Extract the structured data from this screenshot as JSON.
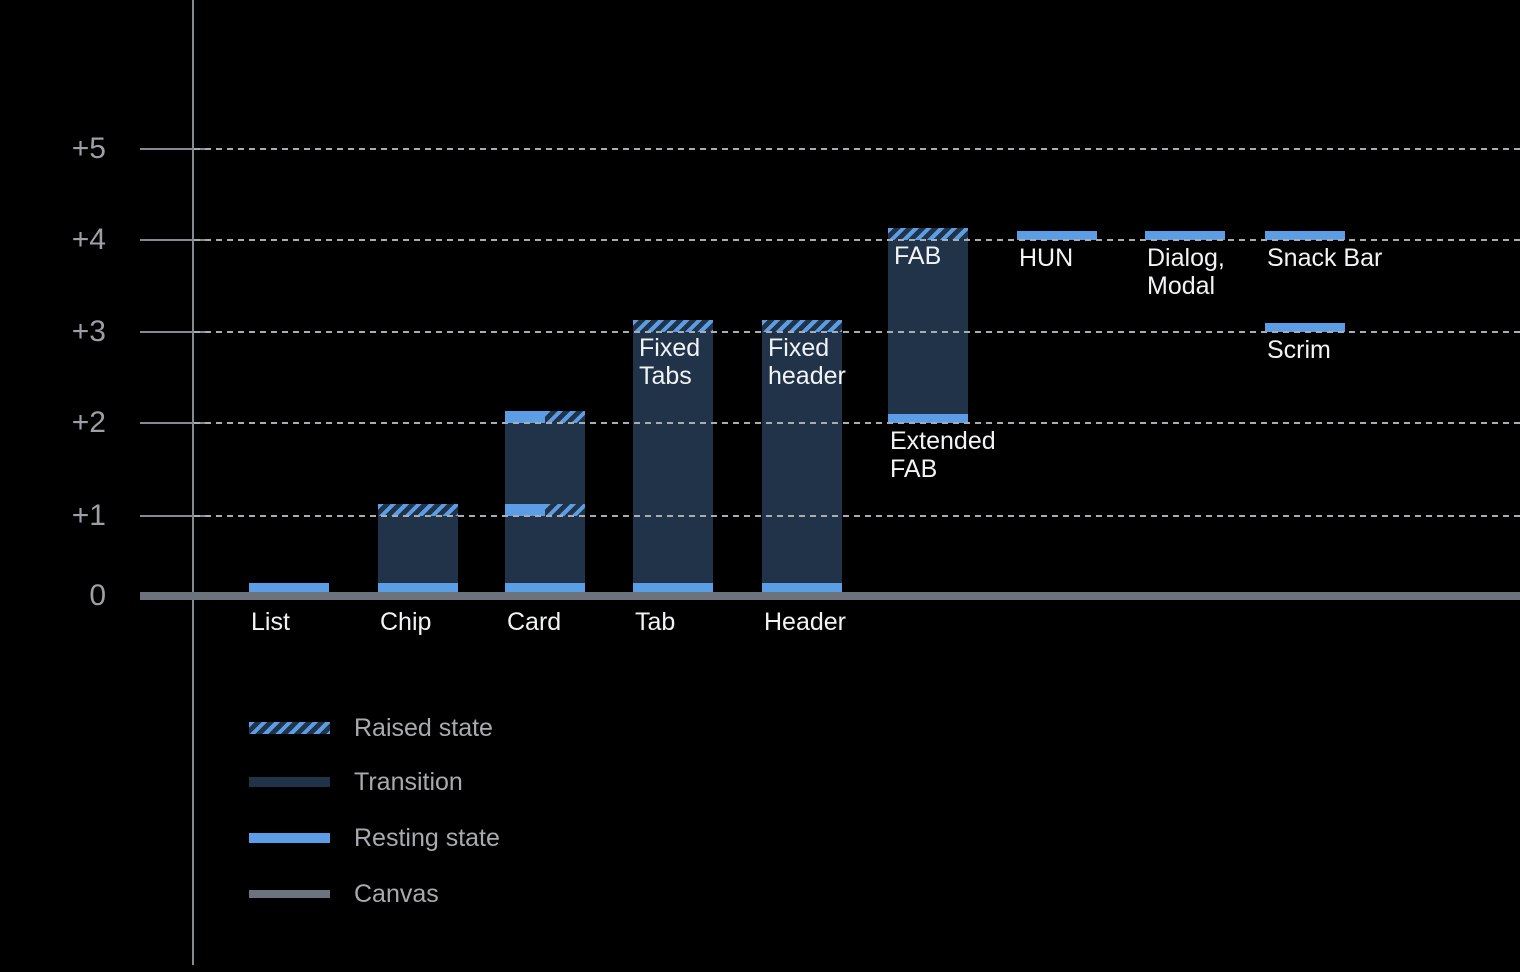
{
  "chart_data": {
    "type": "bar",
    "title": "",
    "xlabel": "",
    "ylabel": "",
    "ylim": [
      0,
      5
    ],
    "grid": "horizontal dotted lines at +1 through +5, solid thick canvas baseline at 0",
    "legend_position": "bottom-left",
    "y_ticks": [
      {
        "label": "+5",
        "value": 5
      },
      {
        "label": "+4",
        "value": 4
      },
      {
        "label": "+3",
        "value": 3
      },
      {
        "label": "+2",
        "value": 2
      },
      {
        "label": "+1",
        "value": 1
      },
      {
        "label": "0",
        "value": 0
      }
    ],
    "colors": {
      "background": "#000000",
      "resting": "#5B9EE5",
      "transition": "#213349",
      "canvas": "#6C737D",
      "grid": "#A9ADB2",
      "axis": "#848A93",
      "tick_label": "#9BA0A6",
      "component_label": "#F1F3F4",
      "legend_label": "#A7ABB0"
    },
    "components": [
      {
        "col": 0,
        "axis_label": "List",
        "segments": [
          {
            "kind": "resting",
            "at": 0
          }
        ]
      },
      {
        "col": 1,
        "axis_label": "Chip",
        "segments": [
          {
            "kind": "resting",
            "at": 0
          },
          {
            "kind": "transition",
            "from": 0,
            "to": 1
          },
          {
            "kind": "raised",
            "at": 1
          }
        ]
      },
      {
        "col": 2,
        "axis_label": "Card",
        "segments": [
          {
            "kind": "resting",
            "at": 0
          },
          {
            "kind": "transition",
            "from": 0,
            "to": 2
          },
          {
            "kind": "resting-raised",
            "at": 1
          },
          {
            "kind": "resting-raised",
            "at": 2
          }
        ]
      },
      {
        "col": 3,
        "axis_label": "Tab",
        "bar_label": [
          "Fixed",
          "Tabs"
        ],
        "bar_label_at": 3,
        "segments": [
          {
            "kind": "resting",
            "at": 0
          },
          {
            "kind": "transition",
            "from": 0,
            "to": 3
          },
          {
            "kind": "raised",
            "at": 3
          }
        ]
      },
      {
        "col": 4,
        "axis_label": "Header",
        "bar_label": [
          "Fixed",
          "header"
        ],
        "bar_label_at": 3,
        "segments": [
          {
            "kind": "resting",
            "at": 0
          },
          {
            "kind": "transition",
            "from": 0,
            "to": 3
          },
          {
            "kind": "raised",
            "at": 3
          }
        ]
      },
      {
        "col": 5,
        "bar_label": [
          "FAB"
        ],
        "bar_label_at": 4,
        "note_label": [
          "Extended",
          "FAB"
        ],
        "note_label_at": 2,
        "segments": [
          {
            "kind": "resting",
            "at": 2
          },
          {
            "kind": "transition",
            "from": 2,
            "to": 4
          },
          {
            "kind": "raised",
            "at": 4
          }
        ]
      },
      {
        "col": 6,
        "note_label": [
          "HUN"
        ],
        "note_label_at": 4,
        "segments": [
          {
            "kind": "resting",
            "at": 4
          }
        ]
      },
      {
        "col": 7,
        "note_label": [
          "Dialog,",
          "Modal"
        ],
        "note_label_at": 4,
        "segments": [
          {
            "kind": "resting",
            "at": 4
          }
        ]
      },
      {
        "col": 8,
        "note_label": [
          "Snack Bar"
        ],
        "note_label_at": 4,
        "segments": [
          {
            "kind": "resting",
            "at": 4
          }
        ]
      },
      {
        "col": 8,
        "note_label": [
          "Scrim"
        ],
        "note_label_at": 3,
        "segments": [
          {
            "kind": "resting",
            "at": 3
          }
        ]
      }
    ],
    "legend": [
      {
        "kind": "raised",
        "label": "Raised state"
      },
      {
        "kind": "transition",
        "label": "Transition"
      },
      {
        "kind": "resting",
        "label": "Resting state"
      },
      {
        "kind": "canvas",
        "label": "Canvas"
      }
    ]
  }
}
